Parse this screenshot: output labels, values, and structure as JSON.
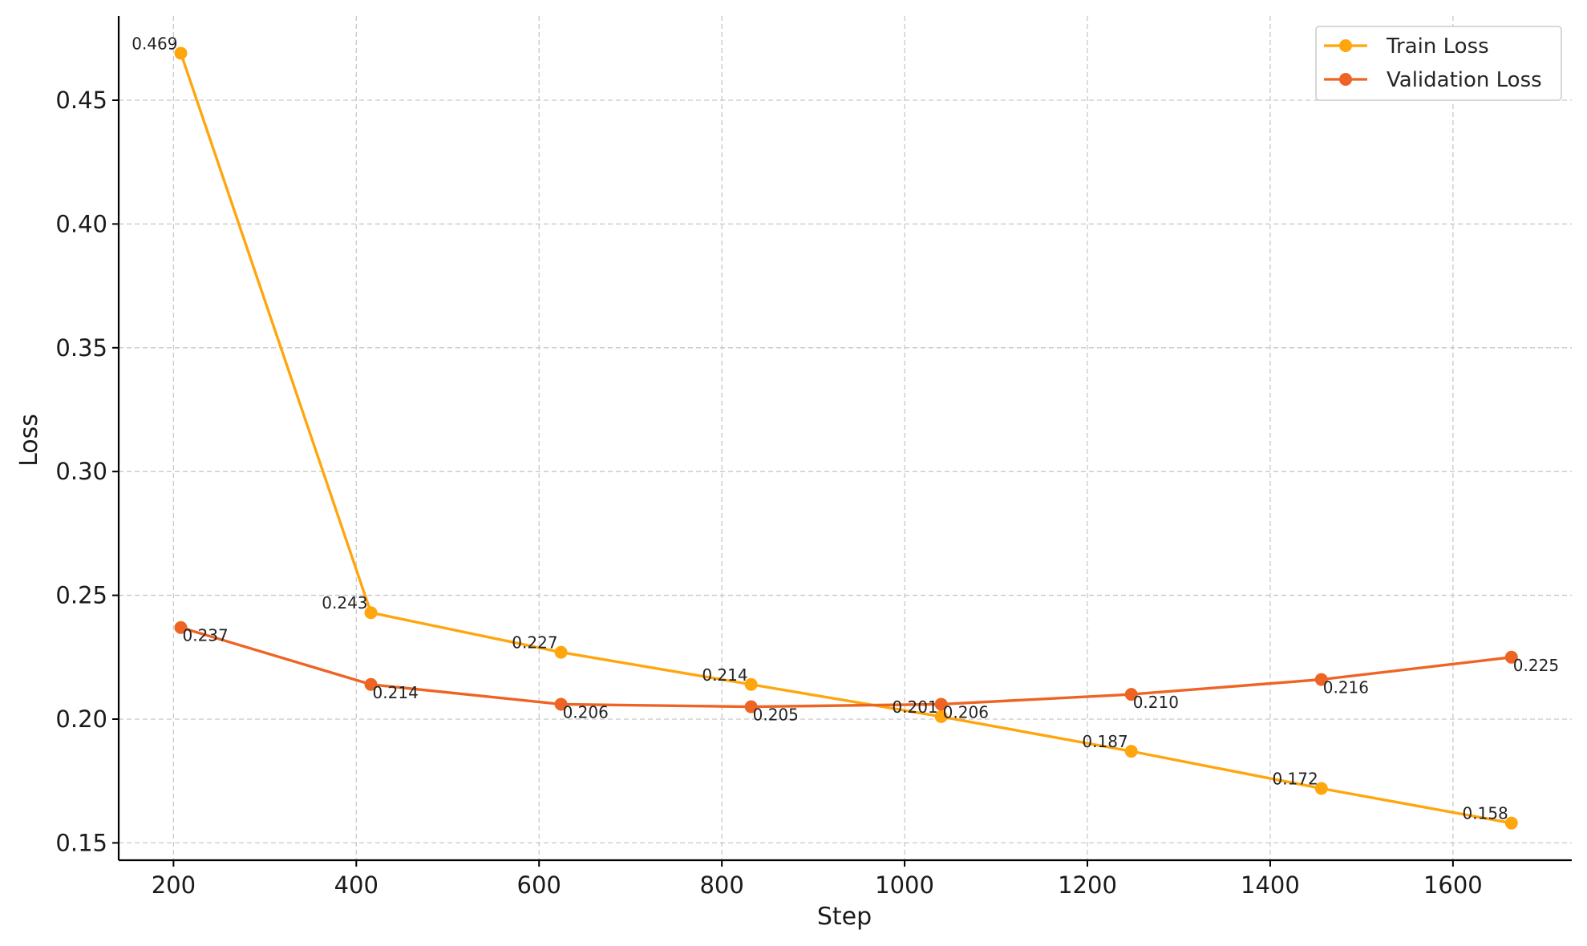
{
  "colors": {
    "train": "#FFA60E",
    "validation": "#EE6424"
  },
  "chart_data": {
    "type": "line",
    "xlabel": "Step",
    "ylabel": "Loss",
    "xlim": [
      140,
      1730
    ],
    "ylim": [
      0.143,
      0.484
    ],
    "xticks": [
      200,
      400,
      600,
      800,
      1000,
      1200,
      1400,
      1600
    ],
    "yticks": [
      0.15,
      0.2,
      0.25,
      0.3,
      0.35,
      0.4,
      0.45
    ],
    "grid": true,
    "legend_position": "top-right",
    "x": [
      208,
      416,
      624,
      832,
      1040,
      1248,
      1456,
      1664
    ],
    "series": [
      {
        "name": "Train Loss",
        "color": "#FFA60E",
        "values": [
          0.469,
          0.243,
          0.227,
          0.214,
          0.201,
          0.187,
          0.172,
          0.158
        ],
        "labels": [
          "0.469",
          "0.243",
          "0.227",
          "0.214",
          "0.201",
          "0.187",
          "0.172",
          "0.158"
        ]
      },
      {
        "name": "Validation Loss",
        "color": "#EE6424",
        "values": [
          0.237,
          0.214,
          0.206,
          0.205,
          0.206,
          0.21,
          0.216,
          0.225
        ],
        "labels": [
          "0.237",
          "0.214",
          "0.206",
          "0.205",
          "0.206",
          "0.210",
          "0.216",
          "0.225"
        ]
      }
    ]
  }
}
